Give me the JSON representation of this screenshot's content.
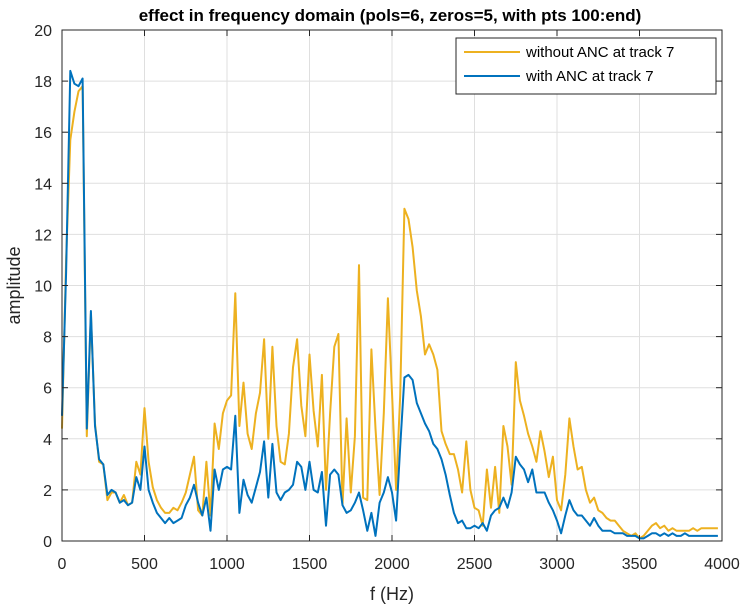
{
  "chart_data": {
    "type": "line",
    "title": "effect in frequency domain (pols=6, zeros=5, with pts 100:end)",
    "xlabel": "f (Hz)",
    "ylabel": "amplitude",
    "xlim": [
      0,
      4000
    ],
    "ylim": [
      0,
      20
    ],
    "xticks": [
      0,
      500,
      1000,
      1500,
      2000,
      2500,
      3000,
      3500,
      4000
    ],
    "yticks": [
      0,
      2,
      4,
      6,
      8,
      10,
      12,
      14,
      16,
      18,
      20
    ],
    "grid": true,
    "legend_position": "top-right",
    "series": [
      {
        "name": "without ANC at track 7",
        "color": "#EDB120",
        "points": [
          [
            0,
            4.4
          ],
          [
            25,
            11
          ],
          [
            50,
            15.7
          ],
          [
            75,
            16.8
          ],
          [
            100,
            17.6
          ],
          [
            125,
            17.8
          ],
          [
            150,
            4.1
          ],
          [
            175,
            8.9
          ],
          [
            200,
            4.6
          ],
          [
            225,
            3.1
          ],
          [
            250,
            3.0
          ],
          [
            275,
            1.6
          ],
          [
            300,
            1.9
          ],
          [
            325,
            1.9
          ],
          [
            350,
            1.5
          ],
          [
            375,
            1.8
          ],
          [
            400,
            1.4
          ],
          [
            425,
            1.5
          ],
          [
            450,
            3.1
          ],
          [
            475,
            2.6
          ],
          [
            500,
            5.2
          ],
          [
            525,
            3.1
          ],
          [
            550,
            2.1
          ],
          [
            575,
            1.6
          ],
          [
            600,
            1.3
          ],
          [
            625,
            1.1
          ],
          [
            650,
            1.1
          ],
          [
            675,
            1.3
          ],
          [
            700,
            1.2
          ],
          [
            725,
            1.5
          ],
          [
            750,
            1.9
          ],
          [
            775,
            2.6
          ],
          [
            800,
            3.3
          ],
          [
            825,
            1.2
          ],
          [
            850,
            1.0
          ],
          [
            875,
            3.1
          ],
          [
            900,
            1.0
          ],
          [
            925,
            4.6
          ],
          [
            950,
            3.6
          ],
          [
            975,
            5.0
          ],
          [
            1000,
            5.5
          ],
          [
            1025,
            5.7
          ],
          [
            1050,
            9.7
          ],
          [
            1075,
            4.5
          ],
          [
            1100,
            6.2
          ],
          [
            1125,
            4.2
          ],
          [
            1150,
            3.6
          ],
          [
            1175,
            5.0
          ],
          [
            1200,
            5.8
          ],
          [
            1225,
            7.9
          ],
          [
            1250,
            4.0
          ],
          [
            1275,
            7.6
          ],
          [
            1300,
            4.5
          ],
          [
            1325,
            3.1
          ],
          [
            1350,
            3.0
          ],
          [
            1375,
            4.2
          ],
          [
            1400,
            6.8
          ],
          [
            1425,
            7.9
          ],
          [
            1450,
            5.3
          ],
          [
            1475,
            4.1
          ],
          [
            1500,
            7.3
          ],
          [
            1525,
            5.1
          ],
          [
            1550,
            3.7
          ],
          [
            1575,
            6.5
          ],
          [
            1600,
            2.0
          ],
          [
            1625,
            5.0
          ],
          [
            1650,
            7.6
          ],
          [
            1675,
            8.1
          ],
          [
            1700,
            1.4
          ],
          [
            1725,
            4.8
          ],
          [
            1750,
            1.9
          ],
          [
            1775,
            4.1
          ],
          [
            1800,
            10.8
          ],
          [
            1825,
            1.7
          ],
          [
            1850,
            1.6
          ],
          [
            1875,
            7.5
          ],
          [
            1900,
            4.4
          ],
          [
            1925,
            1.8
          ],
          [
            1950,
            5.0
          ],
          [
            1975,
            9.5
          ],
          [
            2000,
            5.8
          ],
          [
            2025,
            2.0
          ],
          [
            2050,
            5.7
          ],
          [
            2075,
            13.0
          ],
          [
            2100,
            12.6
          ],
          [
            2125,
            11.5
          ],
          [
            2150,
            9.8
          ],
          [
            2175,
            8.8
          ],
          [
            2200,
            7.3
          ],
          [
            2225,
            7.7
          ],
          [
            2250,
            7.3
          ],
          [
            2275,
            6.7
          ],
          [
            2300,
            4.3
          ],
          [
            2325,
            3.8
          ],
          [
            2350,
            3.4
          ],
          [
            2375,
            3.4
          ],
          [
            2400,
            2.8
          ],
          [
            2425,
            1.9
          ],
          [
            2450,
            3.9
          ],
          [
            2475,
            2.0
          ],
          [
            2500,
            1.3
          ],
          [
            2525,
            1.2
          ],
          [
            2550,
            0.6
          ],
          [
            2575,
            2.8
          ],
          [
            2600,
            1.3
          ],
          [
            2625,
            2.9
          ],
          [
            2650,
            1.1
          ],
          [
            2675,
            4.5
          ],
          [
            2700,
            3.7
          ],
          [
            2725,
            2.2
          ],
          [
            2750,
            7.0
          ],
          [
            2775,
            5.5
          ],
          [
            2800,
            4.9
          ],
          [
            2825,
            4.2
          ],
          [
            2850,
            3.7
          ],
          [
            2875,
            3.1
          ],
          [
            2900,
            4.3
          ],
          [
            2925,
            3.5
          ],
          [
            2950,
            2.5
          ],
          [
            2975,
            3.3
          ],
          [
            3000,
            1.6
          ],
          [
            3025,
            1.2
          ],
          [
            3050,
            2.6
          ],
          [
            3075,
            4.8
          ],
          [
            3100,
            3.7
          ],
          [
            3125,
            2.8
          ],
          [
            3150,
            2.9
          ],
          [
            3175,
            2.0
          ],
          [
            3200,
            1.5
          ],
          [
            3225,
            1.7
          ],
          [
            3250,
            1.2
          ],
          [
            3275,
            1.1
          ],
          [
            3300,
            0.9
          ],
          [
            3325,
            0.8
          ],
          [
            3350,
            0.8
          ],
          [
            3375,
            0.6
          ],
          [
            3400,
            0.4
          ],
          [
            3425,
            0.3
          ],
          [
            3450,
            0.2
          ],
          [
            3475,
            0.3
          ],
          [
            3500,
            0.1
          ],
          [
            3525,
            0.2
          ],
          [
            3550,
            0.4
          ],
          [
            3575,
            0.6
          ],
          [
            3600,
            0.7
          ],
          [
            3625,
            0.5
          ],
          [
            3650,
            0.6
          ],
          [
            3675,
            0.4
          ],
          [
            3700,
            0.5
          ],
          [
            3725,
            0.4
          ],
          [
            3750,
            0.4
          ],
          [
            3775,
            0.4
          ],
          [
            3800,
            0.4
          ],
          [
            3825,
            0.5
          ],
          [
            3850,
            0.4
          ],
          [
            3875,
            0.5
          ],
          [
            3900,
            0.5
          ],
          [
            3925,
            0.5
          ],
          [
            3950,
            0.5
          ],
          [
            3975,
            0.5
          ]
        ]
      },
      {
        "name": "with ANC at track 7",
        "color": "#0072BD",
        "points": [
          [
            0,
            4.9
          ],
          [
            25,
            10.5
          ],
          [
            50,
            18.4
          ],
          [
            75,
            17.9
          ],
          [
            100,
            17.8
          ],
          [
            125,
            18.1
          ],
          [
            150,
            4.4
          ],
          [
            175,
            9.0
          ],
          [
            200,
            4.5
          ],
          [
            225,
            3.2
          ],
          [
            250,
            3.0
          ],
          [
            275,
            1.8
          ],
          [
            300,
            2.0
          ],
          [
            325,
            1.9
          ],
          [
            350,
            1.5
          ],
          [
            375,
            1.6
          ],
          [
            400,
            1.4
          ],
          [
            425,
            1.5
          ],
          [
            450,
            2.5
          ],
          [
            475,
            2.0
          ],
          [
            500,
            3.7
          ],
          [
            525,
            2.0
          ],
          [
            550,
            1.5
          ],
          [
            575,
            1.1
          ],
          [
            600,
            0.9
          ],
          [
            625,
            0.7
          ],
          [
            650,
            0.9
          ],
          [
            675,
            0.7
          ],
          [
            700,
            0.8
          ],
          [
            725,
            0.9
          ],
          [
            750,
            1.4
          ],
          [
            775,
            1.7
          ],
          [
            800,
            2.2
          ],
          [
            825,
            1.5
          ],
          [
            850,
            1.0
          ],
          [
            875,
            1.7
          ],
          [
            900,
            0.4
          ],
          [
            925,
            2.8
          ],
          [
            950,
            2.0
          ],
          [
            975,
            2.8
          ],
          [
            1000,
            2.9
          ],
          [
            1025,
            2.8
          ],
          [
            1050,
            4.9
          ],
          [
            1075,
            1.1
          ],
          [
            1100,
            2.4
          ],
          [
            1125,
            1.8
          ],
          [
            1150,
            1.5
          ],
          [
            1175,
            2.1
          ],
          [
            1200,
            2.7
          ],
          [
            1225,
            3.9
          ],
          [
            1250,
            1.7
          ],
          [
            1275,
            3.8
          ],
          [
            1300,
            1.9
          ],
          [
            1325,
            1.6
          ],
          [
            1350,
            1.9
          ],
          [
            1375,
            2.0
          ],
          [
            1400,
            2.2
          ],
          [
            1425,
            3.1
          ],
          [
            1450,
            2.9
          ],
          [
            1475,
            2.0
          ],
          [
            1500,
            3.1
          ],
          [
            1525,
            2.0
          ],
          [
            1550,
            1.9
          ],
          [
            1575,
            2.7
          ],
          [
            1600,
            0.6
          ],
          [
            1625,
            2.6
          ],
          [
            1650,
            2.8
          ],
          [
            1675,
            2.6
          ],
          [
            1700,
            1.4
          ],
          [
            1725,
            1.1
          ],
          [
            1750,
            1.2
          ],
          [
            1775,
            1.5
          ],
          [
            1800,
            1.9
          ],
          [
            1825,
            1.2
          ],
          [
            1850,
            0.4
          ],
          [
            1875,
            1.1
          ],
          [
            1900,
            0.2
          ],
          [
            1925,
            1.5
          ],
          [
            1950,
            1.9
          ],
          [
            1975,
            2.5
          ],
          [
            2000,
            1.9
          ],
          [
            2025,
            0.8
          ],
          [
            2050,
            3.7
          ],
          [
            2075,
            6.4
          ],
          [
            2100,
            6.5
          ],
          [
            2125,
            6.3
          ],
          [
            2150,
            5.4
          ],
          [
            2175,
            5.0
          ],
          [
            2200,
            4.6
          ],
          [
            2225,
            4.3
          ],
          [
            2250,
            3.8
          ],
          [
            2275,
            3.6
          ],
          [
            2300,
            3.2
          ],
          [
            2325,
            2.6
          ],
          [
            2350,
            1.8
          ],
          [
            2375,
            1.1
          ],
          [
            2400,
            0.7
          ],
          [
            2425,
            0.8
          ],
          [
            2450,
            0.5
          ],
          [
            2475,
            0.5
          ],
          [
            2500,
            0.6
          ],
          [
            2525,
            0.5
          ],
          [
            2550,
            0.7
          ],
          [
            2575,
            0.4
          ],
          [
            2600,
            1.0
          ],
          [
            2625,
            1.2
          ],
          [
            2650,
            1.3
          ],
          [
            2675,
            1.7
          ],
          [
            2700,
            1.3
          ],
          [
            2725,
            1.9
          ],
          [
            2750,
            3.3
          ],
          [
            2775,
            3.0
          ],
          [
            2800,
            2.8
          ],
          [
            2825,
            2.3
          ],
          [
            2850,
            2.8
          ],
          [
            2875,
            1.9
          ],
          [
            2900,
            1.9
          ],
          [
            2925,
            1.9
          ],
          [
            2950,
            1.5
          ],
          [
            2975,
            1.2
          ],
          [
            3000,
            0.8
          ],
          [
            3025,
            0.3
          ],
          [
            3050,
            1.0
          ],
          [
            3075,
            1.6
          ],
          [
            3100,
            1.2
          ],
          [
            3125,
            1.0
          ],
          [
            3150,
            1.0
          ],
          [
            3175,
            0.8
          ],
          [
            3200,
            0.6
          ],
          [
            3225,
            0.9
          ],
          [
            3250,
            0.6
          ],
          [
            3275,
            0.4
          ],
          [
            3300,
            0.4
          ],
          [
            3325,
            0.4
          ],
          [
            3350,
            0.3
          ],
          [
            3375,
            0.3
          ],
          [
            3400,
            0.3
          ],
          [
            3425,
            0.2
          ],
          [
            3450,
            0.2
          ],
          [
            3475,
            0.2
          ],
          [
            3500,
            0.1
          ],
          [
            3525,
            0.1
          ],
          [
            3550,
            0.2
          ],
          [
            3575,
            0.3
          ],
          [
            3600,
            0.3
          ],
          [
            3625,
            0.2
          ],
          [
            3650,
            0.3
          ],
          [
            3675,
            0.2
          ],
          [
            3700,
            0.3
          ],
          [
            3725,
            0.2
          ],
          [
            3750,
            0.2
          ],
          [
            3775,
            0.3
          ],
          [
            3800,
            0.2
          ],
          [
            3825,
            0.2
          ],
          [
            3850,
            0.2
          ],
          [
            3875,
            0.2
          ],
          [
            3900,
            0.2
          ],
          [
            3925,
            0.2
          ],
          [
            3950,
            0.2
          ],
          [
            3975,
            0.2
          ]
        ]
      }
    ]
  }
}
